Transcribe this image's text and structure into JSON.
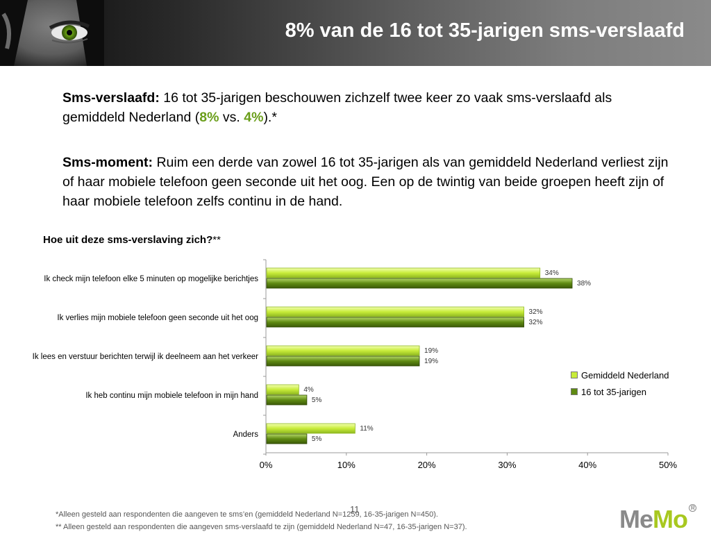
{
  "header": {
    "title": "8% van de 16 tot 35-jarigen sms-verslaafd"
  },
  "paragraph1": {
    "label": "Sms-verslaafd:",
    "text_before": " 16 tot 35-jarigen beschouwen zichzelf twee keer zo vaak sms-verslaafd als gemiddeld Nederland (",
    "value_a": "8%",
    "text_mid": " vs. ",
    "value_b": "4%",
    "text_after": ").*"
  },
  "paragraph2": {
    "label": "Sms-moment:",
    "text": " Ruim een derde van zowel 16 tot 35-jarigen als van gemiddeld Nederland verliest zijn of haar mobiele telefoon geen seconde uit het oog. Een op de twintig van beide groepen heeft zijn of haar mobiele telefoon zelfs continu in de hand."
  },
  "chart_title": {
    "text": "Hoe uit deze sms-verslaving zich?",
    "stars": "**"
  },
  "chart_data": {
    "type": "bar",
    "orientation": "horizontal",
    "categories": [
      "Ik check mijn telefoon elke 5 minuten op mogelijke berichtjes",
      "Ik verlies mijn mobiele telefoon geen seconde uit het oog",
      "Ik lees en verstuur berichten terwijl ik deelneem aan het verkeer",
      "Ik heb continu mijn mobiele telefoon in mijn hand",
      "Anders"
    ],
    "series": [
      {
        "name": "Gemiddeld Nederland",
        "values": [
          34,
          32,
          19,
          4,
          11
        ],
        "color": "#c8ec3a"
      },
      {
        "name": "16 tot 35-jarigen",
        "values": [
          38,
          32,
          19,
          5,
          5
        ],
        "color": "#5f8a12"
      }
    ],
    "value_labels": [
      [
        "34%",
        "32%",
        "19%",
        "4%",
        "11%"
      ],
      [
        "38%",
        "32%",
        "19%",
        "5%",
        "5%"
      ]
    ],
    "x_ticks": [
      "0%",
      "10%",
      "20%",
      "30%",
      "40%",
      "50%"
    ],
    "xlim": [
      0,
      50
    ],
    "legend_position": "right"
  },
  "footer": {
    "page_number": "11",
    "note1": "*Alleen gesteld aan respondenten die aangeven te sms’en (gemiddeld Nederland N=1259, 16-35-jarigen N=450).",
    "note2": "** Alleen gesteld aan respondenten die aangeven sms-verslaafd te zijn (gemiddeld Nederland N=47, 16-35-jarigen N=37)."
  },
  "logo": {
    "me": "Me",
    "mo": "Mo",
    "reg": "R"
  }
}
